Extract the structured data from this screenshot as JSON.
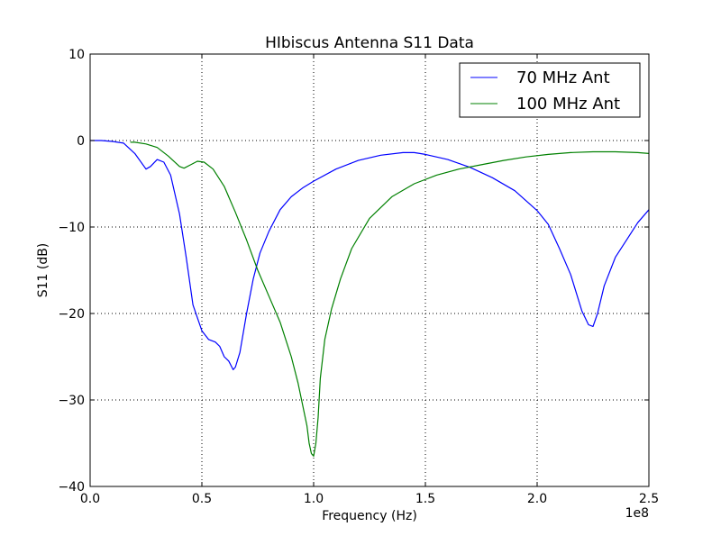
{
  "chart_data": {
    "type": "line",
    "title": "HIbiscus Antenna S11 Data",
    "xlabel": "Frequency (Hz)",
    "ylabel": "S11 (dB)",
    "x_offset_label": "1e8",
    "xlim": [
      0,
      2.5
    ],
    "ylim": [
      -40,
      10
    ],
    "x_ticks": [
      0.0,
      0.5,
      1.0,
      1.5,
      2.0,
      2.5
    ],
    "x_tick_labels": [
      "0.0",
      "0.5",
      "1.0",
      "1.5",
      "2.0",
      "2.5"
    ],
    "y_ticks": [
      10,
      0,
      -10,
      -20,
      -30,
      -40
    ],
    "y_tick_labels": [
      "10",
      "0",
      "−10",
      "−20",
      "−30",
      "−40"
    ],
    "grid": true,
    "legend_position": "upper-right",
    "series": [
      {
        "name": "70 MHz Ant",
        "color": "#0000ff",
        "x": [
          0.0,
          0.05,
          0.1,
          0.15,
          0.2,
          0.25,
          0.27,
          0.3,
          0.33,
          0.36,
          0.4,
          0.43,
          0.46,
          0.5,
          0.53,
          0.56,
          0.58,
          0.6,
          0.62,
          0.64,
          0.65,
          0.67,
          0.7,
          0.73,
          0.76,
          0.8,
          0.85,
          0.9,
          0.95,
          1.0,
          1.1,
          1.2,
          1.3,
          1.4,
          1.45,
          1.5,
          1.6,
          1.7,
          1.8,
          1.9,
          2.0,
          2.05,
          2.1,
          2.15,
          2.2,
          2.23,
          2.25,
          2.27,
          2.3,
          2.35,
          2.4,
          2.45,
          2.5
        ],
        "y": [
          0.0,
          0.0,
          -0.1,
          -0.3,
          -1.5,
          -3.3,
          -3.0,
          -2.2,
          -2.5,
          -4.0,
          -8.5,
          -13.5,
          -19.0,
          -22.0,
          -23.0,
          -23.3,
          -23.8,
          -25.0,
          -25.5,
          -26.5,
          -26.2,
          -24.5,
          -20.0,
          -16.0,
          -13.0,
          -10.5,
          -8.0,
          -6.5,
          -5.5,
          -4.7,
          -3.3,
          -2.3,
          -1.7,
          -1.4,
          -1.4,
          -1.6,
          -2.2,
          -3.1,
          -4.3,
          -5.8,
          -8.1,
          -9.7,
          -12.5,
          -15.5,
          -19.7,
          -21.3,
          -21.5,
          -20.0,
          -16.8,
          -13.5,
          -11.5,
          -9.5,
          -8.0
        ]
      },
      {
        "name": "100 MHz Ant",
        "color": "#008000",
        "x": [
          0.18,
          0.2,
          0.25,
          0.3,
          0.35,
          0.4,
          0.42,
          0.45,
          0.48,
          0.51,
          0.55,
          0.6,
          0.65,
          0.7,
          0.75,
          0.8,
          0.85,
          0.9,
          0.93,
          0.95,
          0.97,
          0.98,
          0.99,
          1.0,
          1.01,
          1.02,
          1.03,
          1.05,
          1.08,
          1.12,
          1.17,
          1.25,
          1.35,
          1.45,
          1.55,
          1.65,
          1.75,
          1.85,
          1.95,
          2.05,
          2.15,
          2.25,
          2.35,
          2.45,
          2.5
        ],
        "y": [
          -0.2,
          -0.2,
          -0.4,
          -0.8,
          -1.8,
          -3.0,
          -3.2,
          -2.8,
          -2.4,
          -2.5,
          -3.3,
          -5.3,
          -8.3,
          -11.5,
          -15.0,
          -18.0,
          -21.0,
          -25.0,
          -28.0,
          -30.5,
          -33.0,
          -35.0,
          -36.2,
          -36.5,
          -35.0,
          -32.0,
          -27.5,
          -23.0,
          -19.5,
          -16.0,
          -12.5,
          -9.0,
          -6.5,
          -5.0,
          -4.0,
          -3.3,
          -2.8,
          -2.3,
          -1.9,
          -1.6,
          -1.4,
          -1.3,
          -1.3,
          -1.4,
          -1.5
        ]
      }
    ]
  }
}
